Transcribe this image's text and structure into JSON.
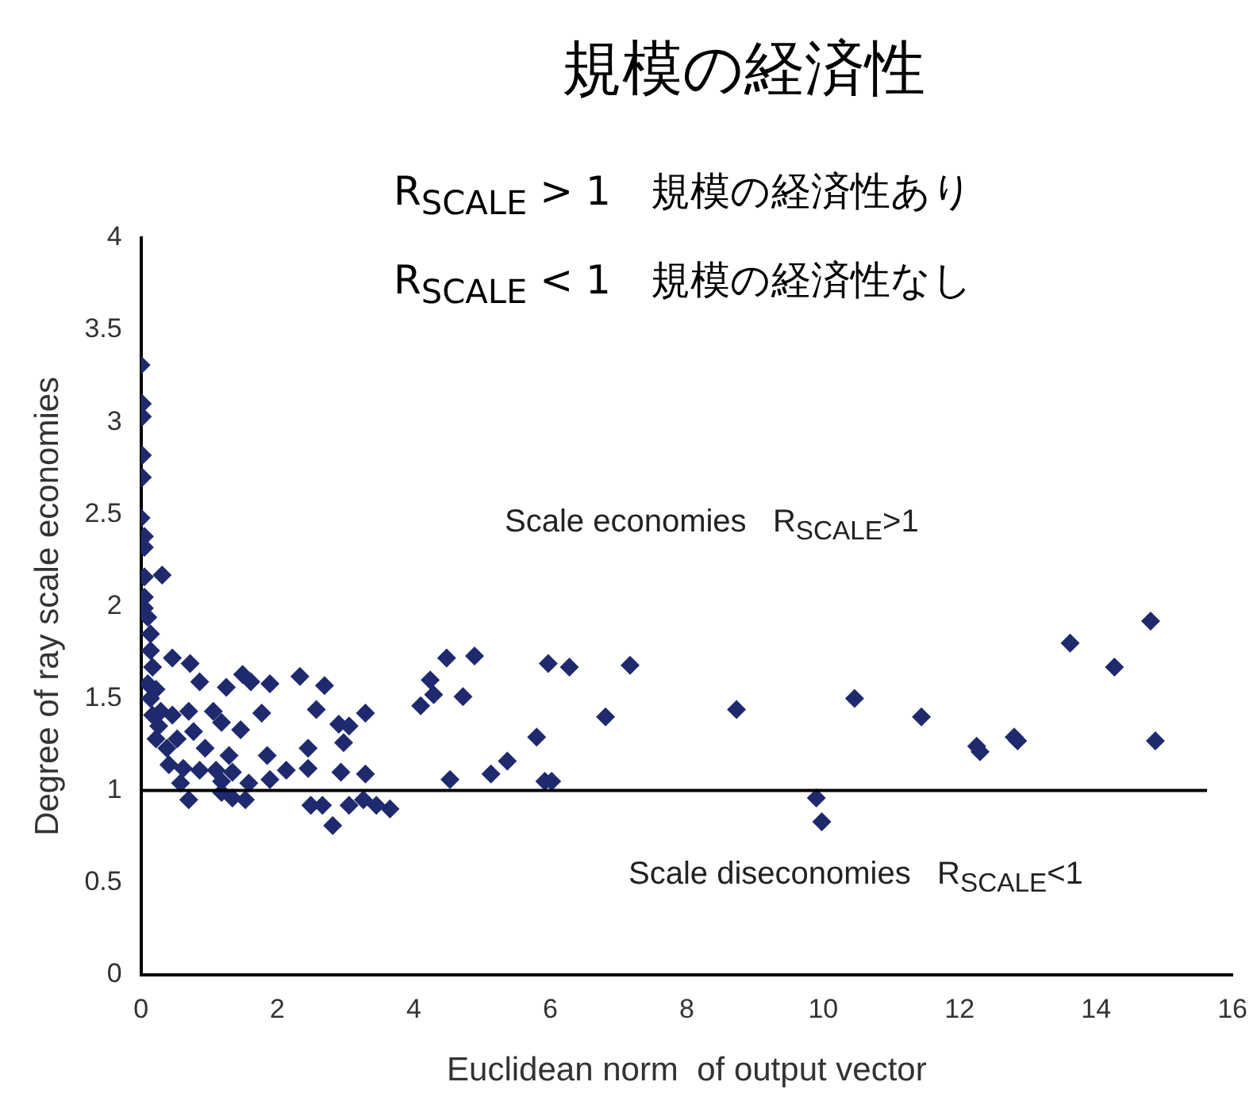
{
  "chart_data": {
    "type": "scatter",
    "title": "規模の経済性",
    "annotations": [
      "R$_{SCALE}$ > 1　規模の経済性あり",
      "R$_{SCALE}$ < 1　規模の経済性なし",
      "Scale economies   R$_{SCALE}$>1",
      "Scale diseconomies   R$_{SCALE}$<1"
    ],
    "xlabel": "Euclidean norm  of output vector",
    "ylabel": "Degree of ray scale economies",
    "xlim": [
      0,
      16
    ],
    "xticks": [
      0,
      2,
      4,
      6,
      8,
      10,
      12,
      14,
      16
    ],
    "ylim": [
      0,
      4
    ],
    "yticks": [
      0,
      0.5,
      1,
      1.5,
      2,
      2.5,
      3,
      3.5,
      4
    ],
    "marker": "diamond",
    "ref_lines": [
      {
        "axis": "y",
        "value": 1,
        "color": "#000000"
      }
    ],
    "series": [
      {
        "color": "#1f2a6e",
        "x": [
          0.0,
          0.02,
          0.02,
          0.02,
          0.02,
          0.0,
          0.05,
          0.05,
          0.31,
          0.05,
          0.05,
          0.05,
          0.1,
          0.14,
          0.14,
          0.46,
          0.72,
          0.17,
          0.86,
          1.25,
          1.49,
          1.61,
          1.89,
          2.33,
          2.69,
          2.57,
          3.29,
          1.77,
          1.46,
          0.22,
          0.29,
          0.46,
          0.7,
          1.06,
          1.18,
          0.22,
          0.53,
          0.77,
          0.94,
          1.29,
          1.85,
          2.45,
          0.41,
          0.62,
          0.86,
          1.1,
          1.34,
          2.13,
          2.45,
          2.93,
          3.29,
          1.89,
          0.58,
          1.18,
          1.58,
          0.7,
          1.18,
          1.34,
          1.53,
          2.49,
          2.81,
          3.05,
          3.26,
          3.65,
          0.1,
          0.14,
          0.17,
          0.26,
          0.38,
          2.66,
          3.45,
          2.9,
          3.05,
          2.97,
          4.24,
          4.1,
          4.29,
          4.48,
          4.72,
          4.89,
          4.53,
          5.13,
          5.37,
          5.8,
          5.92,
          6.02,
          5.97,
          6.28,
          6.81,
          7.17,
          8.73,
          9.9,
          9.98,
          10.46,
          11.44,
          12.25,
          12.3,
          12.8,
          12.85,
          13.62,
          14.27,
          14.8,
          14.87
        ],
        "values": [
          3.31,
          3.1,
          3.03,
          2.82,
          2.7,
          2.48,
          2.38,
          2.32,
          2.17,
          2.16,
          2.05,
          1.99,
          1.94,
          1.85,
          1.76,
          1.72,
          1.69,
          1.67,
          1.59,
          1.56,
          1.63,
          1.59,
          1.58,
          1.62,
          1.57,
          1.44,
          1.42,
          1.42,
          1.33,
          1.55,
          1.43,
          1.41,
          1.43,
          1.43,
          1.37,
          1.28,
          1.28,
          1.32,
          1.23,
          1.19,
          1.19,
          1.23,
          1.14,
          1.12,
          1.11,
          1.11,
          1.1,
          1.11,
          1.12,
          1.1,
          1.09,
          1.06,
          1.04,
          1.05,
          1.04,
          0.95,
          0.99,
          0.96,
          0.95,
          0.92,
          0.81,
          0.92,
          0.95,
          0.9,
          1.58,
          1.5,
          1.41,
          1.35,
          1.23,
          0.92,
          0.92,
          1.36,
          1.35,
          1.26,
          1.6,
          1.46,
          1.52,
          1.72,
          1.51,
          1.73,
          1.06,
          1.09,
          1.16,
          1.29,
          1.05,
          1.05,
          1.69,
          1.67,
          1.4,
          1.68,
          1.44,
          0.96,
          0.83,
          1.5,
          1.4,
          1.24,
          1.21,
          1.29,
          1.27,
          1.8,
          1.67,
          1.92,
          1.27
        ]
      }
    ]
  }
}
